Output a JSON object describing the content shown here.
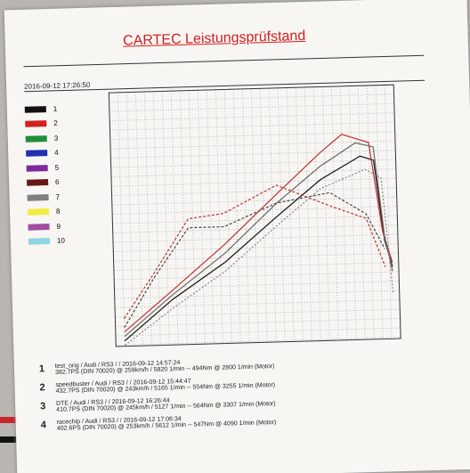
{
  "header": {
    "title": "CARTEC Leistungsprüfstand",
    "timestamp": "2016-09-12 17:26:50"
  },
  "legend": [
    {
      "label": "1",
      "color": "#111111"
    },
    {
      "label": "2",
      "color": "#d42020"
    },
    {
      "label": "3",
      "color": "#1f8f3a"
    },
    {
      "label": "4",
      "color": "#2030b0"
    },
    {
      "label": "5",
      "color": "#7a2a9a"
    },
    {
      "label": "6",
      "color": "#6a1818"
    },
    {
      "label": "7",
      "color": "#7f7f7f"
    },
    {
      "label": "8",
      "color": "#f2ee40"
    },
    {
      "label": "9",
      "color": "#a050a0"
    },
    {
      "label": "10",
      "color": "#8fd6e0"
    }
  ],
  "runs": [
    {
      "number": "1",
      "line1": "test_orig / Audi / RS3 / / 2016-09-12 14:57:24",
      "line2": "382.7PS (DIN 70020) @ 259km/h / 5820 1/min -- 494Nm @ 2800 1/min (Motor)"
    },
    {
      "number": "2",
      "line1": "speedbuster / Audi / RS3 / / 2016-09-12 15:44:47",
      "line2": "432.7PS (DIN 70020) @ 243km/h / 5165 1/min -- 554Nm @ 3255 1/min (Motor)"
    },
    {
      "number": "3",
      "line1": "DTE / Audi / RS3 / / 2016-09-12 16:26:44",
      "line2": "410.7PS (DIN 70020) @ 245km/h / 5127 1/min -- 564Nm @ 3307 1/min (Motor)"
    },
    {
      "number": "4",
      "line1": "racechip / Audi / RS3 / / 2016-09-12 17:06:34",
      "line2": "402.6PS (DIN 70020) @ 253km/h / 5612 1/min -- 547Nm @ 4090 1/min (Motor)"
    }
  ]
}
